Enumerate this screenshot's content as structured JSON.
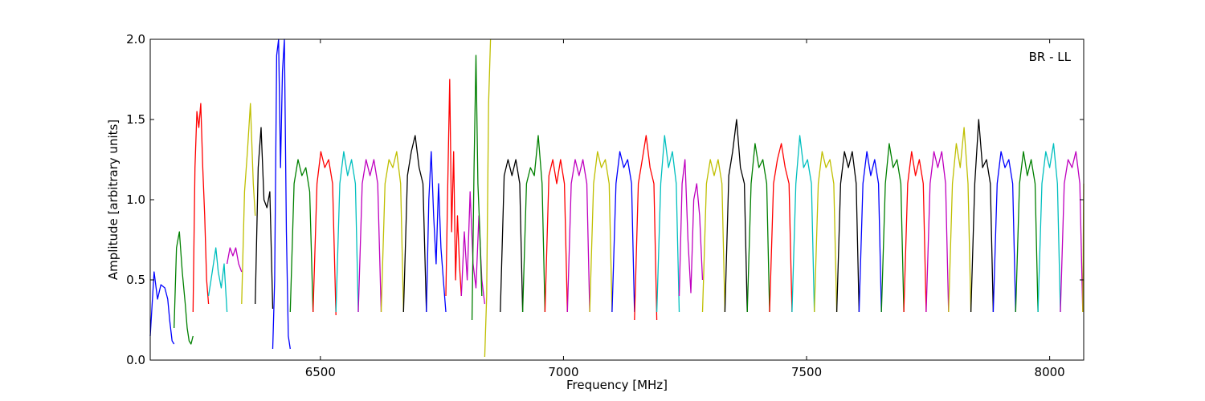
{
  "chart_data": {
    "type": "line",
    "title": "",
    "xlabel": "Frequency [MHz]",
    "ylabel": "Amplitude [arbitrary units]",
    "xlim": [
      6150,
      8070
    ],
    "ylim": [
      0.0,
      2.0
    ],
    "x_ticks": [
      6500,
      7000,
      7500,
      8000
    ],
    "x_tick_labels": [
      "6500",
      "7000",
      "7500",
      "8000"
    ],
    "y_ticks": [
      0.0,
      0.5,
      1.0,
      1.5,
      2.0
    ],
    "y_tick_labels": [
      "0.0",
      "0.5",
      "1.0",
      "1.5",
      "2.0"
    ],
    "annotation": "BR - LL",
    "grid": false,
    "colors": {
      "cycle": [
        "#0000ff",
        "#008000",
        "#ff0000",
        "#00bfbf",
        "#bf00bf",
        "#bfbf00",
        "#000000"
      ],
      "flagged": "#c0c0c0"
    },
    "series": [
      {
        "color": "#0000ff",
        "x": [
          6150,
          6158,
          6165,
          6172,
          6180,
          6186,
          6190,
          6195,
          6199
        ],
        "y": [
          0.15,
          0.55,
          0.38,
          0.47,
          0.45,
          0.38,
          0.25,
          0.12,
          0.1
        ]
      },
      {
        "color": "#008000",
        "x": [
          6199,
          6204,
          6210,
          6216,
          6222,
          6226,
          6230,
          6234,
          6238
        ],
        "y": [
          0.2,
          0.7,
          0.8,
          0.55,
          0.35,
          0.2,
          0.12,
          0.1,
          0.15
        ]
      },
      {
        "color": "#ff0000",
        "x": [
          6238,
          6242,
          6246,
          6250,
          6254,
          6258,
          6262,
          6266,
          6270
        ],
        "y": [
          0.3,
          1.2,
          1.55,
          1.45,
          1.6,
          1.2,
          0.9,
          0.5,
          0.35
        ]
      },
      {
        "color": "#00bfbf",
        "x": [
          6270,
          6275,
          6280,
          6285,
          6290,
          6296,
          6302,
          6308
        ],
        "y": [
          0.4,
          0.5,
          0.6,
          0.7,
          0.55,
          0.45,
          0.6,
          0.3
        ]
      },
      {
        "color": "#bf00bf",
        "x": [
          6308,
          6314,
          6320,
          6326,
          6332,
          6338
        ],
        "y": [
          0.6,
          0.7,
          0.65,
          0.7,
          0.6,
          0.55
        ]
      },
      {
        "color": "#bfbf00",
        "x": [
          6338,
          6344,
          6350,
          6356,
          6362,
          6366
        ],
        "y": [
          0.35,
          1.05,
          1.3,
          1.6,
          1.1,
          0.9
        ]
      },
      {
        "color": "#000000",
        "x": [
          6366,
          6372,
          6378,
          6384,
          6390,
          6396,
          6402
        ],
        "y": [
          0.35,
          1.2,
          1.45,
          1.0,
          0.95,
          1.05,
          0.32
        ]
      },
      {
        "color": "#0000ff",
        "x": [
          6402,
          6406,
          6410,
          6414,
          6418,
          6422,
          6426,
          6430,
          6434,
          6438
        ],
        "y": [
          0.07,
          0.5,
          1.9,
          2.0,
          1.2,
          1.8,
          2.0,
          0.8,
          0.15,
          0.07
        ]
      },
      {
        "color": "#008000",
        "x": [
          6438,
          6446,
          6454,
          6462,
          6470,
          6478,
          6485
        ],
        "y": [
          0.3,
          1.1,
          1.25,
          1.15,
          1.2,
          1.05,
          0.3
        ]
      },
      {
        "color": "#ff0000",
        "x": [
          6485,
          6493,
          6501,
          6509,
          6517,
          6525,
          6532
        ],
        "y": [
          0.3,
          1.1,
          1.3,
          1.2,
          1.25,
          1.1,
          0.28
        ]
      },
      {
        "color": "#00bfbf",
        "x": [
          6532,
          6540,
          6548,
          6556,
          6564,
          6572,
          6578
        ],
        "y": [
          0.3,
          1.1,
          1.3,
          1.15,
          1.25,
          1.1,
          0.3
        ]
      },
      {
        "color": "#bf00bf",
        "x": [
          6578,
          6586,
          6594,
          6602,
          6610,
          6618,
          6625
        ],
        "y": [
          0.3,
          1.1,
          1.25,
          1.15,
          1.25,
          1.1,
          0.3
        ]
      },
      {
        "color": "#bfbf00",
        "x": [
          6625,
          6633,
          6641,
          6649,
          6657,
          6665,
          6671
        ],
        "y": [
          0.3,
          1.1,
          1.25,
          1.2,
          1.3,
          1.1,
          0.3
        ]
      },
      {
        "color": "#000000",
        "x": [
          6671,
          6679,
          6687,
          6695,
          6703,
          6711,
          6718
        ],
        "y": [
          0.3,
          1.15,
          1.3,
          1.4,
          1.2,
          1.1,
          0.3
        ]
      },
      {
        "color": "#0000ff",
        "x": [
          6718,
          6723,
          6728,
          6733,
          6738,
          6743,
          6748,
          6753,
          6758
        ],
        "y": [
          0.3,
          1.0,
          1.3,
          0.9,
          0.6,
          1.1,
          0.7,
          0.5,
          0.3
        ]
      },
      {
        "color": "#ff0000",
        "x": [
          6758,
          6762,
          6766,
          6770,
          6774,
          6778,
          6782,
          6786,
          6790
        ],
        "y": [
          0.4,
          1.1,
          1.75,
          0.8,
          1.3,
          0.5,
          0.9,
          0.6,
          0.4
        ]
      },
      {
        "color": "#bf00bf",
        "x": [
          6790,
          6796,
          6802,
          6808,
          6814,
          6820,
          6826,
          6832,
          6838
        ],
        "y": [
          0.4,
          0.8,
          0.5,
          1.05,
          0.6,
          0.45,
          0.9,
          0.5,
          0.35
        ]
      },
      {
        "color": "#008000",
        "x": [
          6812,
          6816,
          6820,
          6824,
          6828,
          6832
        ],
        "y": [
          0.25,
          1.2,
          1.9,
          1.1,
          0.8,
          0.4
        ]
      },
      {
        "color": "#bfbf00",
        "x": [
          6838,
          6842,
          6846,
          6850
        ],
        "y": [
          0.02,
          0.4,
          1.6,
          2.0
        ]
      },
      {
        "color": "#000000",
        "x": [
          6870,
          6878,
          6886,
          6894,
          6902,
          6910,
          6916
        ],
        "y": [
          0.3,
          1.15,
          1.25,
          1.15,
          1.25,
          1.1,
          0.3
        ]
      },
      {
        "color": "#008000",
        "x": [
          6916,
          6924,
          6932,
          6940,
          6948,
          6956,
          6962
        ],
        "y": [
          0.3,
          1.1,
          1.2,
          1.15,
          1.4,
          1.1,
          0.3
        ]
      },
      {
        "color": "#ff0000",
        "x": [
          6962,
          6970,
          6978,
          6986,
          6994,
          7002,
          7008
        ],
        "y": [
          0.3,
          1.15,
          1.25,
          1.1,
          1.25,
          1.1,
          0.3
        ]
      },
      {
        "color": "#bf00bf",
        "x": [
          7008,
          7016,
          7024,
          7032,
          7040,
          7048,
          7054
        ],
        "y": [
          0.3,
          1.1,
          1.25,
          1.15,
          1.25,
          1.1,
          0.3
        ]
      },
      {
        "color": "#bfbf00",
        "x": [
          7054,
          7062,
          7070,
          7078,
          7086,
          7094,
          7100
        ],
        "y": [
          0.3,
          1.1,
          1.3,
          1.2,
          1.25,
          1.1,
          0.3
        ]
      },
      {
        "color": "#0000ff",
        "x": [
          7100,
          7108,
          7116,
          7124,
          7132,
          7140,
          7146
        ],
        "y": [
          0.3,
          1.1,
          1.3,
          1.2,
          1.25,
          1.1,
          0.3
        ]
      },
      {
        "color": "#ff0000",
        "x": [
          7146,
          7154,
          7162,
          7170,
          7178,
          7186,
          7192
        ],
        "y": [
          0.25,
          1.1,
          1.25,
          1.4,
          1.2,
          1.1,
          0.25
        ]
      },
      {
        "color": "#00bfbf",
        "x": [
          7192,
          7200,
          7208,
          7216,
          7224,
          7232,
          7238
        ],
        "y": [
          0.3,
          1.1,
          1.4,
          1.2,
          1.3,
          1.1,
          0.3
        ]
      },
      {
        "color": "#bf00bf",
        "x": [
          7238,
          7244,
          7250,
          7256,
          7262,
          7268,
          7274,
          7280,
          7286
        ],
        "y": [
          0.4,
          1.1,
          1.25,
          0.75,
          0.42,
          1.0,
          1.1,
          0.9,
          0.5
        ]
      },
      {
        "color": "#bfbf00",
        "x": [
          7286,
          7294,
          7302,
          7310,
          7318,
          7326,
          7332
        ],
        "y": [
          0.3,
          1.1,
          1.25,
          1.15,
          1.25,
          1.1,
          0.3
        ]
      },
      {
        "color": "#000000",
        "x": [
          7332,
          7340,
          7348,
          7356,
          7364,
          7372,
          7378
        ],
        "y": [
          0.3,
          1.15,
          1.3,
          1.5,
          1.2,
          1.1,
          0.3
        ]
      },
      {
        "color": "#008000",
        "x": [
          7378,
          7386,
          7394,
          7402,
          7410,
          7418,
          7424
        ],
        "y": [
          0.3,
          1.1,
          1.35,
          1.2,
          1.25,
          1.1,
          0.3
        ]
      },
      {
        "color": "#ff0000",
        "x": [
          7424,
          7432,
          7440,
          7448,
          7456,
          7464,
          7470
        ],
        "y": [
          0.3,
          1.1,
          1.25,
          1.35,
          1.2,
          1.1,
          0.3
        ]
      },
      {
        "color": "#00bfbf",
        "x": [
          7470,
          7478,
          7486,
          7494,
          7502,
          7510,
          7516
        ],
        "y": [
          0.3,
          1.1,
          1.4,
          1.2,
          1.25,
          1.1,
          0.3
        ]
      },
      {
        "color": "#bfbf00",
        "x": [
          7516,
          7524,
          7532,
          7540,
          7548,
          7556,
          7562
        ],
        "y": [
          0.3,
          1.1,
          1.3,
          1.2,
          1.25,
          1.1,
          0.3
        ]
      },
      {
        "color": "#000000",
        "x": [
          7562,
          7570,
          7578,
          7586,
          7594,
          7602,
          7608
        ],
        "y": [
          0.3,
          1.1,
          1.3,
          1.2,
          1.3,
          1.1,
          0.3
        ]
      },
      {
        "color": "#0000ff",
        "x": [
          7608,
          7616,
          7624,
          7632,
          7640,
          7648,
          7654
        ],
        "y": [
          0.3,
          1.1,
          1.3,
          1.15,
          1.25,
          1.1,
          0.3
        ]
      },
      {
        "color": "#008000",
        "x": [
          7654,
          7662,
          7670,
          7678,
          7686,
          7694,
          7700
        ],
        "y": [
          0.3,
          1.1,
          1.35,
          1.2,
          1.25,
          1.1,
          0.3
        ]
      },
      {
        "color": "#ff0000",
        "x": [
          7700,
          7708,
          7716,
          7724,
          7732,
          7740,
          7746
        ],
        "y": [
          0.3,
          1.1,
          1.3,
          1.15,
          1.25,
          1.1,
          0.3
        ]
      },
      {
        "color": "#bf00bf",
        "x": [
          7746,
          7754,
          7762,
          7770,
          7778,
          7786,
          7792
        ],
        "y": [
          0.3,
          1.1,
          1.3,
          1.2,
          1.3,
          1.1,
          0.3
        ]
      },
      {
        "color": "#bfbf00",
        "x": [
          7792,
          7800,
          7808,
          7816,
          7824,
          7832,
          7838
        ],
        "y": [
          0.3,
          1.1,
          1.35,
          1.2,
          1.45,
          1.1,
          0.3
        ]
      },
      {
        "color": "#000000",
        "x": [
          7838,
          7846,
          7854,
          7862,
          7870,
          7878,
          7884
        ],
        "y": [
          0.3,
          1.1,
          1.5,
          1.2,
          1.25,
          1.1,
          0.3
        ]
      },
      {
        "color": "#0000ff",
        "x": [
          7884,
          7892,
          7900,
          7908,
          7916,
          7924,
          7930
        ],
        "y": [
          0.3,
          1.1,
          1.3,
          1.2,
          1.25,
          1.1,
          0.3
        ]
      },
      {
        "color": "#008000",
        "x": [
          7930,
          7938,
          7946,
          7954,
          7962,
          7970,
          7976
        ],
        "y": [
          0.3,
          1.1,
          1.3,
          1.15,
          1.25,
          1.1,
          0.3
        ]
      },
      {
        "color": "#00bfbf",
        "x": [
          7976,
          7984,
          7992,
          8000,
          8008,
          8016,
          8022
        ],
        "y": [
          0.3,
          1.1,
          1.3,
          1.2,
          1.35,
          1.1,
          0.3
        ]
      },
      {
        "color": "#bf00bf",
        "x": [
          8022,
          8030,
          8038,
          8046,
          8054,
          8062,
          8068
        ],
        "y": [
          0.3,
          1.1,
          1.25,
          1.2,
          1.3,
          1.1,
          0.3
        ]
      },
      {
        "color": "#bfbf00",
        "x": [
          8068,
          8070
        ],
        "y": [
          0.3,
          1.1
        ]
      }
    ]
  }
}
